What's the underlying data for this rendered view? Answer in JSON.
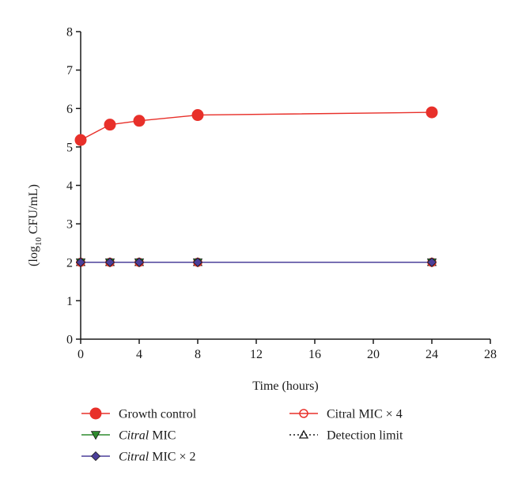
{
  "chart_data": {
    "type": "line",
    "xlabel": "Time (hours)",
    "ylabel": {
      "prefix": "(log",
      "sub": "10",
      "suffix": " CFU/mL)"
    },
    "xlim": [
      0,
      28
    ],
    "ylim": [
      0,
      8
    ],
    "xticks": [
      "0",
      "4",
      "8",
      "12",
      "16",
      "20",
      "24",
      "28"
    ],
    "yticks": [
      "0",
      "1",
      "2",
      "3",
      "4",
      "5",
      "6",
      "7",
      "8"
    ],
    "x": [
      0,
      2,
      4,
      8,
      24
    ],
    "grid": false,
    "legend_position": "bottom",
    "series": [
      {
        "name": "Growth control",
        "name_italic": "",
        "name_rest": "Growth control",
        "values": [
          5.18,
          5.58,
          5.68,
          5.83,
          5.9
        ],
        "color": "#e8302a",
        "marker": "circle-filled",
        "line": "solid"
      },
      {
        "name": "Citral MIC",
        "name_italic": "Citral",
        "name_rest": " MIC",
        "values": [
          2,
          2,
          2,
          2,
          2
        ],
        "color": "#2e8b2e",
        "marker": "triangle-down-filled",
        "line": "solid"
      },
      {
        "name": "Citral MIC × 2",
        "name_italic": "Citral",
        "name_rest": " MIC × 2",
        "values": [
          2,
          2,
          2,
          2,
          2
        ],
        "color": "#4b3f9a",
        "marker": "diamond-filled",
        "line": "solid"
      },
      {
        "name": "Citral MIC × 4",
        "name_italic": "",
        "name_rest": "Citral MIC × 4",
        "values": [
          2,
          2,
          2,
          2,
          2
        ],
        "color": "#e8302a",
        "marker": "circle-open",
        "line": "solid"
      },
      {
        "name": "Detection limit",
        "name_italic": "",
        "name_rest": "Detection limit",
        "values": [
          2,
          2,
          2,
          2,
          2
        ],
        "color": "#1a1a1a",
        "marker": "triangle-up-open",
        "line": "dotted"
      }
    ]
  }
}
